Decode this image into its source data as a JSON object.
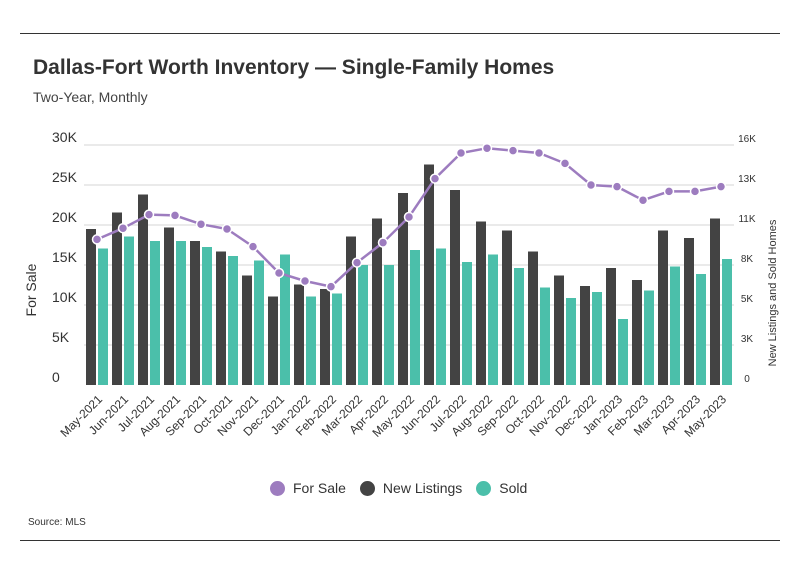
{
  "header": {
    "title": "Dallas-Fort Worth Inventory — Single-Family Homes",
    "subtitle": "Two-Year, Monthly"
  },
  "footer": {
    "source": "Source: MLS"
  },
  "colors": {
    "for_sale": "#9d7cbf",
    "new_listings": "#434343",
    "sold": "#4bbfaa",
    "grid": "#d6d6d6"
  },
  "chart_data": {
    "type": "bar",
    "categories": [
      "May-2021",
      "Jun-2021",
      "Jul-2021",
      "Aug-2021",
      "Sep-2021",
      "Oct-2021",
      "Nov-2021",
      "Dec-2021",
      "Jan-2022",
      "Feb-2022",
      "Mar-2022",
      "Apr-2022",
      "May-2022",
      "Jun-2022",
      "Jul-2022",
      "Aug-2022",
      "Sep-2022",
      "Oct-2022",
      "Nov-2022",
      "Dec-2022",
      "Jan-2023",
      "Feb-2023",
      "Mar-2023",
      "Apr-2023",
      "May-2023"
    ],
    "series": [
      {
        "name": "For Sale",
        "type": "line",
        "axis": "left",
        "values": [
          18200,
          19600,
          21300,
          21200,
          20100,
          19500,
          17300,
          14000,
          13000,
          12300,
          15300,
          17800,
          21000,
          25800,
          29000,
          29600,
          29300,
          29000,
          27700,
          25000,
          24800,
          23100,
          24200,
          24200,
          24800
        ]
      },
      {
        "name": "New Listings",
        "type": "bar",
        "axis": "right",
        "values": [
          10400,
          11500,
          12700,
          10500,
          9600,
          8900,
          7300,
          5900,
          6700,
          6400,
          9900,
          11100,
          12800,
          14700,
          13000,
          10900,
          10300,
          8900,
          7300,
          6600,
          7800,
          7000,
          10300,
          9800,
          11100
        ]
      },
      {
        "name": "Sold",
        "type": "bar",
        "axis": "right",
        "values": [
          9100,
          9900,
          9600,
          9600,
          9200,
          8600,
          8300,
          8700,
          5900,
          6100,
          8000,
          8000,
          9000,
          9100,
          8200,
          8700,
          7800,
          6500,
          5800,
          6200,
          4400,
          6300,
          7900,
          7400,
          8400
        ]
      }
    ],
    "left_axis": {
      "label": "For Sale",
      "ylim": [
        0,
        30000
      ],
      "ticks": [
        "0",
        "5K",
        "10K",
        "15K",
        "20K",
        "25K",
        "30K"
      ]
    },
    "right_axis": {
      "label": "New Listings and Sold Homes",
      "ylim": [
        0,
        16000
      ],
      "ticks": [
        "0",
        "3K",
        "5K",
        "8K",
        "11K",
        "13K",
        "16K"
      ]
    },
    "legend": [
      "For Sale",
      "New Listings",
      "Sold"
    ],
    "legend_position": "bottom",
    "grid": true
  }
}
